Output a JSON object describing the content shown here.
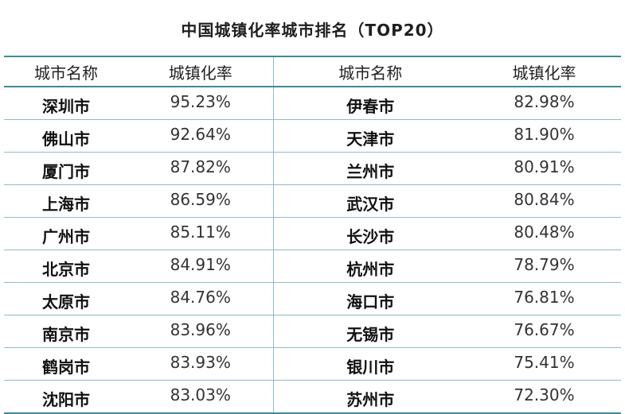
{
  "title": "中国城镇化率城市排名（TOP20）",
  "headers": [
    "城市名称",
    "城镇化率",
    "城市名称",
    "城镇化率"
  ],
  "rows": [
    {
      "city1": "深圳市",
      "rate1": "95.23%",
      "city2": "伊春市",
      "rate2": "82.98%"
    },
    {
      "city1": "佛山市",
      "rate1": "92.64%",
      "city2": "天津市",
      "rate2": "81.90%"
    },
    {
      "city1": "厦门市",
      "rate1": "87.82%",
      "city2": "兰州市",
      "rate2": "80.91%"
    },
    {
      "city1": "上海市",
      "rate1": "86.59%",
      "city2": "武汉市",
      "rate2": "80.84%"
    },
    {
      "city1": "广州市",
      "rate1": "85.11%",
      "city2": "长沙市",
      "rate2": "80.48%"
    },
    {
      "city1": "北京市",
      "rate1": "84.91%",
      "city2": "杭州市",
      "rate2": "78.79%"
    },
    {
      "city1": "太原市",
      "rate1": "84.76%",
      "city2": "海口市",
      "rate2": "76.81%"
    },
    {
      "city1": "南京市",
      "rate1": "83.96%",
      "city2": "无锡市",
      "rate2": "76.67%"
    },
    {
      "city1": "鹤岗市",
      "rate1": "83.93%",
      "city2": "银川市",
      "rate2": "75.41%"
    },
    {
      "city1": "沈阳市",
      "rate1": "83.03%",
      "city2": "苏州市",
      "rate2": "72.30%"
    }
  ]
}
